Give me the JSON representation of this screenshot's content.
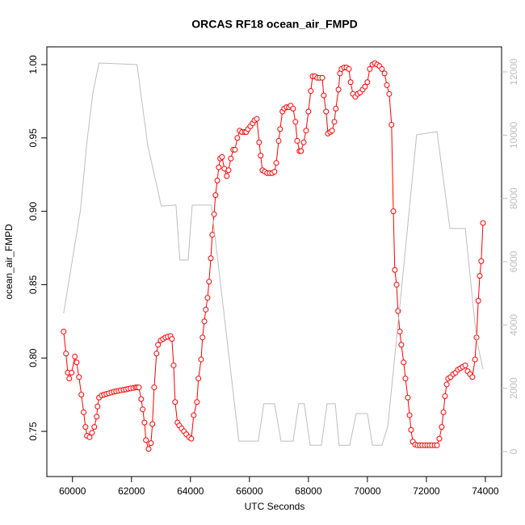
{
  "chart_data": {
    "type": "line",
    "title": "ORCAS RF18 ocean_air_FMPD",
    "xlabel": "UTC Seconds",
    "ylabel": "ocean_air_FMPD",
    "xlim": [
      59130,
      74550
    ],
    "ylim": [
      0.7192,
      1.0121
    ],
    "y2lim": [
      -791,
      12791
    ],
    "xticks": [
      60000,
      62000,
      64000,
      66000,
      68000,
      70000,
      72000,
      74000
    ],
    "yticks": [
      0.75,
      {
        "value": 0.8,
        "label": "0.80"
      },
      0.85,
      {
        "value": 0.9,
        "label": "0.90"
      },
      0.95,
      {
        "value": 1.0,
        "label": "1.00"
      }
    ],
    "y2ticks": [
      0,
      2000,
      4000,
      6000,
      8000,
      10000,
      12000
    ],
    "series": [
      {
        "color": "#ff0000",
        "marker": "circle",
        "x": [
          59700,
          59780,
          59840,
          59890,
          59970,
          60080,
          60140,
          60220,
          60300,
          60380,
          60440,
          60490,
          60580,
          60660,
          60740,
          60820,
          60850,
          60900,
          60990,
          61070,
          61150,
          61230,
          61320,
          61400,
          61480,
          61560,
          61640,
          61730,
          61810,
          61890,
          61970,
          62060,
          62140,
          62190,
          62250,
          62330,
          62380,
          62440,
          62490,
          62580,
          62660,
          62710,
          62770,
          62850,
          62900,
          62990,
          63070,
          63150,
          63230,
          63320,
          63370,
          63430,
          63480,
          63560,
          63620,
          63700,
          63780,
          63860,
          63950,
          64030,
          64110,
          64220,
          64270,
          64360,
          64410,
          64470,
          64520,
          64580,
          64630,
          64690,
          64740,
          64800,
          64850,
          64910,
          64960,
          65010,
          65070,
          65150,
          65230,
          65290,
          65370,
          65450,
          65510,
          65590,
          65670,
          65750,
          65840,
          65890,
          65950,
          66030,
          66110,
          66170,
          66250,
          66330,
          66380,
          66440,
          66520,
          66600,
          66690,
          66770,
          66850,
          66910,
          66990,
          67040,
          67120,
          67180,
          67260,
          67340,
          67400,
          67480,
          67560,
          67620,
          67700,
          67750,
          67840,
          67920,
          68000,
          68080,
          68140,
          68220,
          68300,
          68380,
          68470,
          68520,
          68600,
          68660,
          68740,
          68800,
          68880,
          68930,
          69020,
          69070,
          69120,
          69210,
          69290,
          69370,
          69430,
          69510,
          69590,
          69670,
          69750,
          69840,
          69920,
          70000,
          70080,
          70170,
          70250,
          70330,
          70410,
          70490,
          70580,
          70660,
          70740,
          70820,
          70880,
          70930,
          70990,
          71040,
          71100,
          71150,
          71230,
          71290,
          71370,
          71430,
          71480,
          71540,
          71620,
          71700,
          71780,
          71860,
          71950,
          72030,
          72110,
          72190,
          72280,
          72360,
          72440,
          72520,
          72580,
          72630,
          72690,
          72740,
          72820,
          72910,
          72990,
          73070,
          73150,
          73230,
          73320,
          73400,
          73480,
          73560,
          73650,
          73700,
          73760,
          73810,
          73860,
          73920
        ],
        "values": [
          0.818,
          0.803,
          0.79,
          0.786,
          0.79,
          0.801,
          0.797,
          0.787,
          0.775,
          0.763,
          0.753,
          0.747,
          0.746,
          0.749,
          0.753,
          0.76,
          0.767,
          0.773,
          0.7745,
          0.775,
          0.7755,
          0.776,
          0.7765,
          0.777,
          0.7773,
          0.7776,
          0.778,
          0.7783,
          0.7786,
          0.779,
          0.7793,
          0.7796,
          0.78,
          0.78,
          0.78,
          0.772,
          0.765,
          0.756,
          0.744,
          0.738,
          0.742,
          0.755,
          0.78,
          0.803,
          0.809,
          0.812,
          0.813,
          0.814,
          0.8145,
          0.815,
          0.813,
          0.795,
          0.77,
          0.756,
          0.754,
          0.752,
          0.75,
          0.748,
          0.746,
          0.745,
          0.761,
          0.77,
          0.786,
          0.799,
          0.814,
          0.825,
          0.833,
          0.841,
          0.852,
          0.868,
          0.884,
          0.898,
          0.911,
          0.921,
          0.93,
          0.936,
          0.937,
          0.929,
          0.924,
          0.928,
          0.936,
          0.942,
          0.942,
          0.95,
          0.955,
          0.954,
          0.954,
          0.954,
          0.956,
          0.958,
          0.96,
          0.962,
          0.963,
          0.947,
          0.938,
          0.928,
          0.927,
          0.926,
          0.926,
          0.926,
          0.927,
          0.933,
          0.948,
          0.956,
          0.968,
          0.97,
          0.971,
          0.971,
          0.972,
          0.97,
          0.961,
          0.948,
          0.941,
          0.941,
          0.947,
          0.955,
          0.968,
          0.982,
          0.992,
          0.992,
          0.991,
          0.991,
          0.991,
          0.979,
          0.968,
          0.953,
          0.954,
          0.955,
          0.961,
          0.97,
          0.983,
          0.994,
          0.997,
          0.998,
          0.998,
          0.997,
          0.988,
          0.98,
          0.978,
          0.98,
          0.981,
          0.983,
          0.985,
          0.988,
          0.997,
          1.0,
          1.001,
          1.0,
          0.999,
          0.997,
          0.994,
          0.986,
          0.98,
          0.959,
          0.9,
          0.86,
          0.85,
          0.832,
          0.818,
          0.809,
          0.797,
          0.786,
          0.773,
          0.761,
          0.751,
          0.743,
          0.741,
          0.7405,
          0.7405,
          0.7405,
          0.7405,
          0.7405,
          0.7405,
          0.7405,
          0.7405,
          0.7405,
          0.745,
          0.753,
          0.763,
          0.774,
          0.782,
          0.786,
          0.787,
          0.789,
          0.79,
          0.792,
          0.793,
          0.794,
          0.795,
          0.791,
          0.789,
          0.787,
          0.799,
          0.814,
          0.839,
          0.856,
          0.866,
          0.892
        ]
      },
      {
        "color": "#bebebe",
        "axis": "y2",
        "x": [
          59700,
          60270,
          60490,
          60690,
          60900,
          62190,
          62550,
          63010,
          63510,
          63640,
          63920,
          64060,
          64710,
          65640,
          66300,
          66490,
          66850,
          67070,
          67480,
          67670,
          67860,
          68060,
          68440,
          68630,
          68910,
          69040,
          69400,
          69620,
          70000,
          70170,
          70490,
          70690,
          71150,
          71670,
          72360,
          72800,
          73320,
          73700,
          73920
        ],
        "values": [
          4370,
          7630,
          9800,
          11340,
          12280,
          12230,
          9680,
          7760,
          7790,
          6050,
          6050,
          7790,
          7790,
          330,
          330,
          1510,
          1510,
          330,
          330,
          1510,
          1510,
          200,
          200,
          1510,
          1510,
          200,
          200,
          1200,
          1200,
          200,
          200,
          790,
          5080,
          10010,
          10110,
          7050,
          7050,
          3550,
          2600
        ]
      }
    ]
  }
}
